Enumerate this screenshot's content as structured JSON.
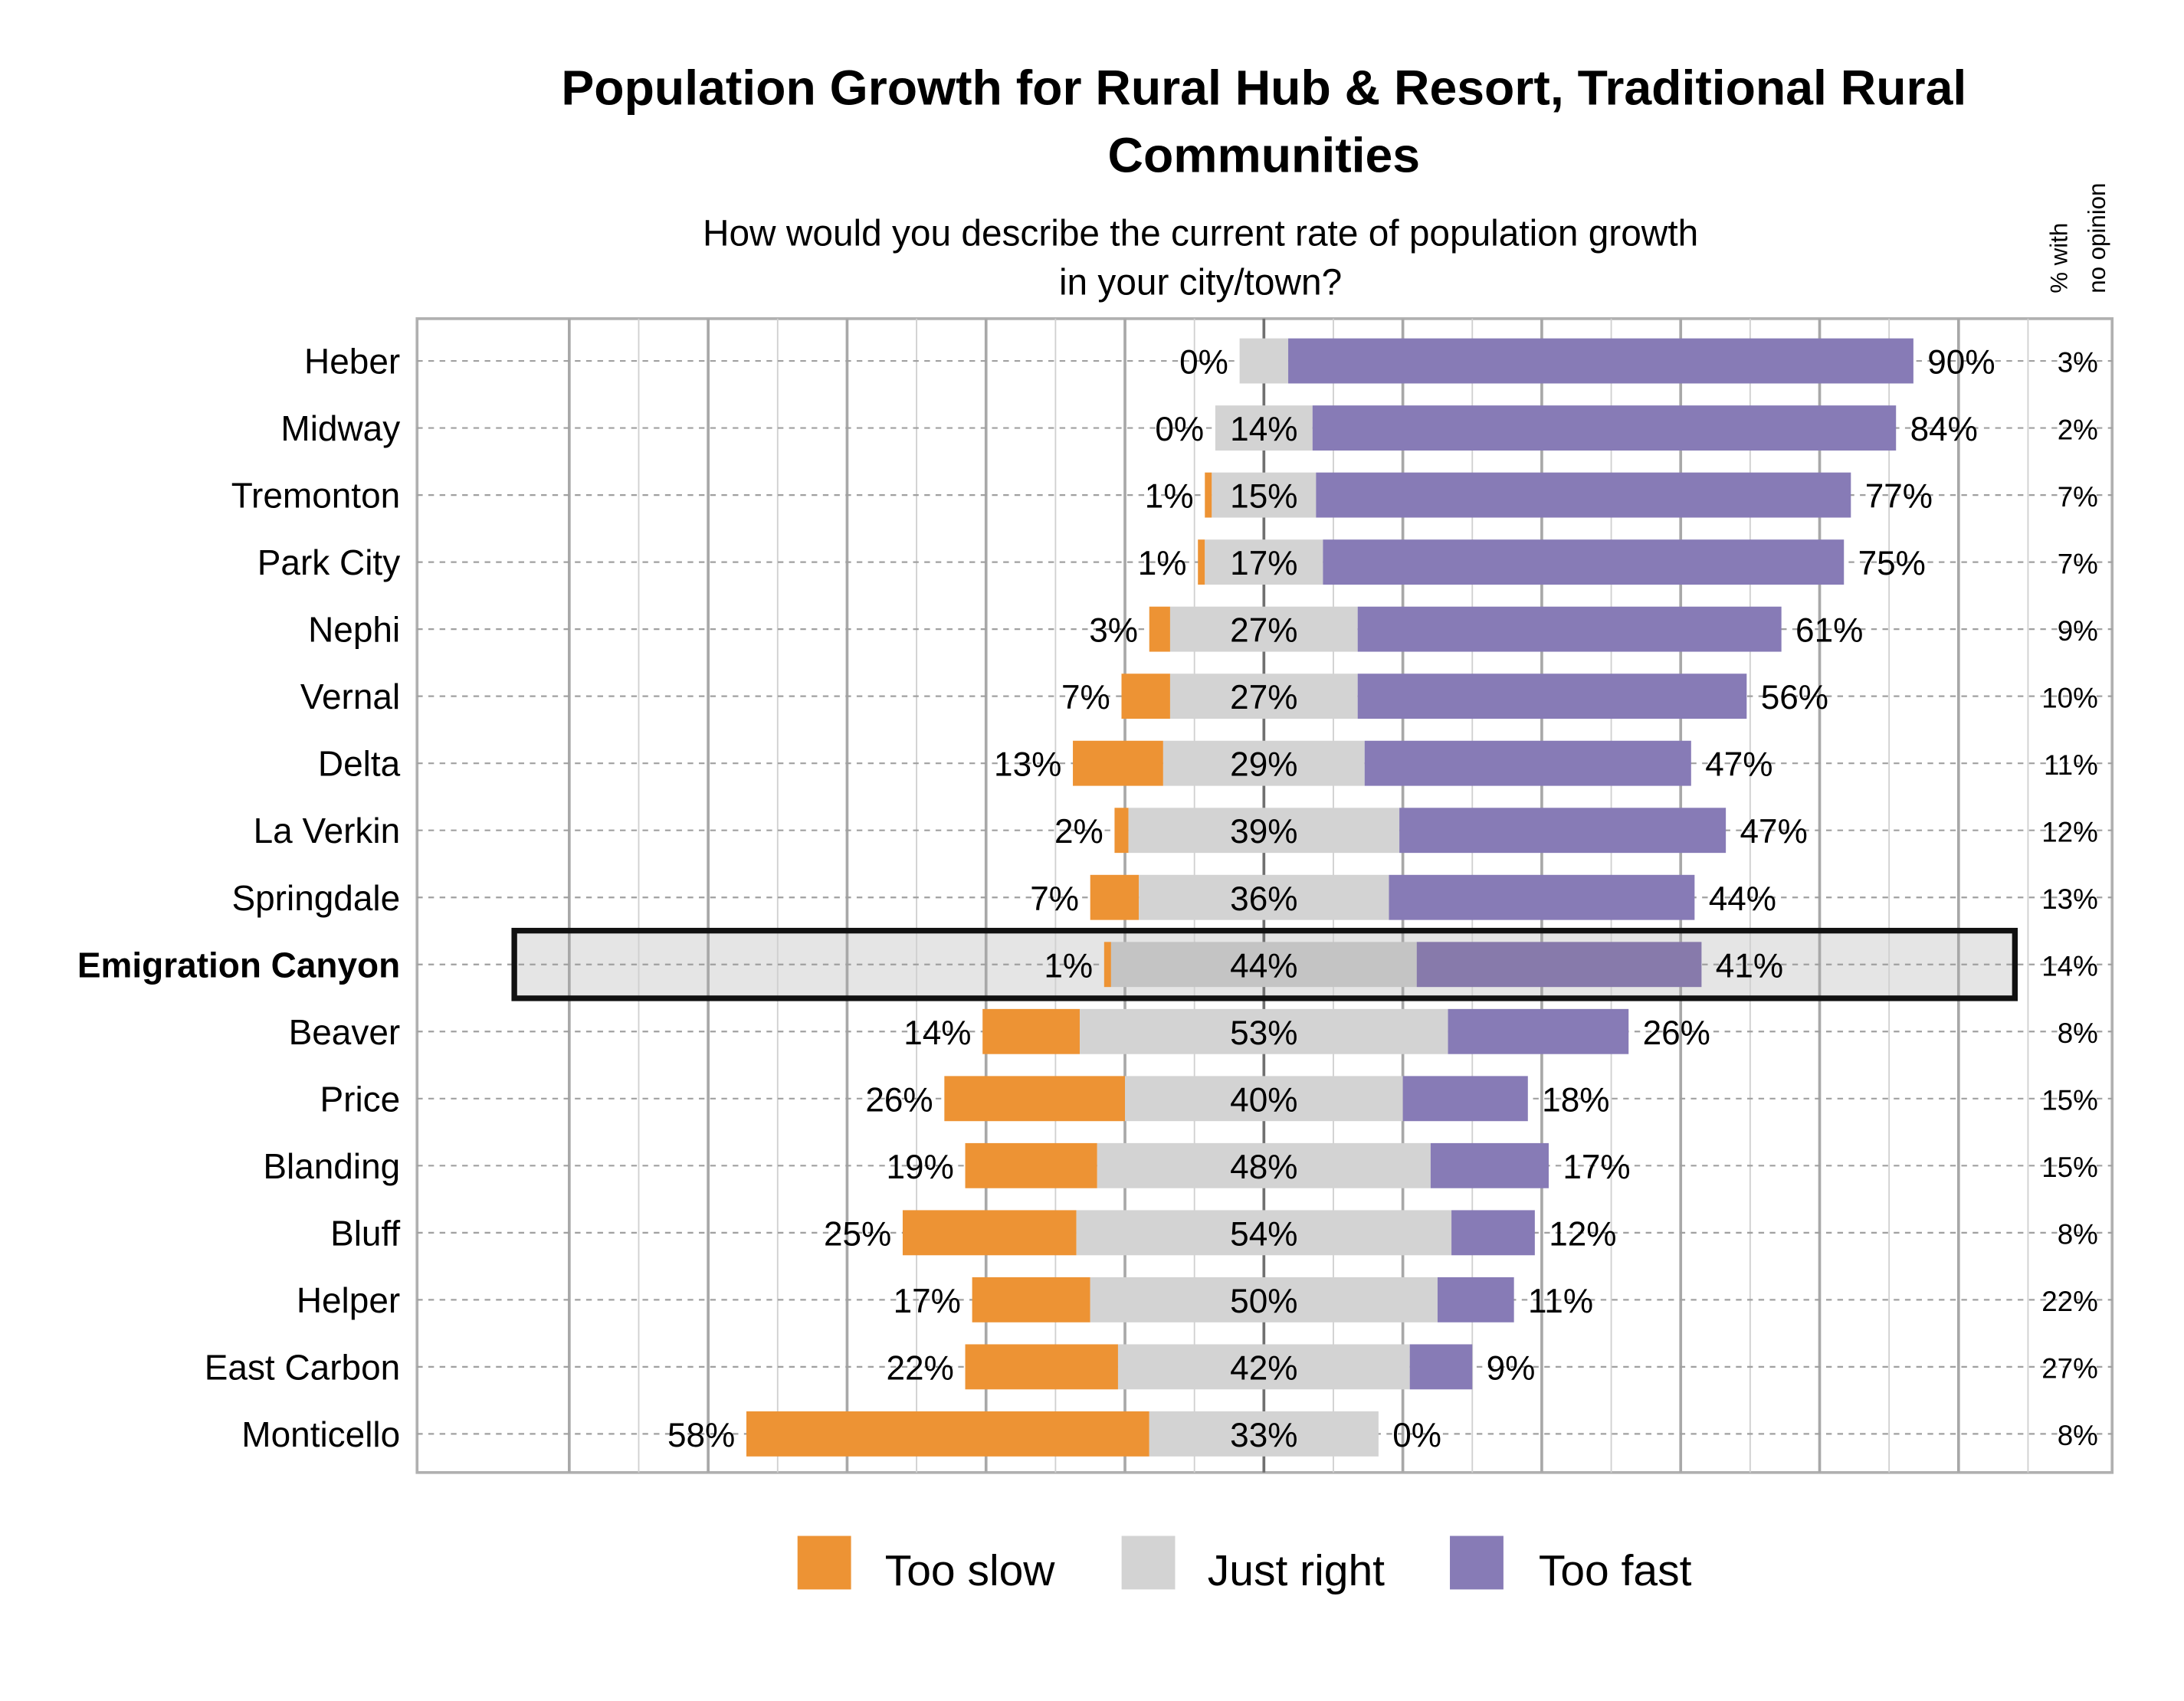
{
  "chart_data": {
    "type": "bar",
    "orientation": "horizontal-diverging-stacked",
    "title": "Population Growth for Rural Hub & Resort, Traditional Rural Communities",
    "title_lines": [
      "Population Growth for Rural Hub & Resort, Traditional Rural",
      "Communities"
    ],
    "subtitle_lines": [
      "How would you describe the current rate of population growth",
      "in your city/town?"
    ],
    "side_header_lines": [
      "% with",
      "no opinion"
    ],
    "categories": [
      "Heber",
      "Midway",
      "Tremonton",
      "Park City",
      "Nephi",
      "Vernal",
      "Delta",
      "La Verkin",
      "Springdale",
      "Emigration Canyon",
      "Beaver",
      "Price",
      "Blanding",
      "Bluff",
      "Helper",
      "East Carbon",
      "Monticello"
    ],
    "highlighted_category": "Emigration Canyon",
    "series": [
      {
        "name": "Too slow",
        "color": "#ed9334",
        "values": [
          0,
          0,
          1,
          1,
          3,
          7,
          13,
          2,
          7,
          1,
          14,
          26,
          19,
          25,
          17,
          22,
          58
        ],
        "labels": [
          "0%",
          "0%",
          "1%",
          "1%",
          "3%",
          "7%",
          "13%",
          "2%",
          "7%",
          "1%",
          "14%",
          "26%",
          "19%",
          "25%",
          "17%",
          "22%",
          "58%"
        ]
      },
      {
        "name": "Just right",
        "color": "#d3d3d3",
        "values": [
          7,
          14,
          15,
          17,
          27,
          27,
          29,
          39,
          36,
          44,
          53,
          40,
          48,
          54,
          50,
          42,
          33
        ],
        "labels": [
          "",
          "14%",
          "15%",
          "17%",
          "27%",
          "27%",
          "29%",
          "39%",
          "36%",
          "44%",
          "53%",
          "40%",
          "48%",
          "54%",
          "50%",
          "42%",
          "33%"
        ]
      },
      {
        "name": "Too fast",
        "color": "#877bb6",
        "values": [
          90,
          84,
          77,
          75,
          61,
          56,
          47,
          47,
          44,
          41,
          26,
          18,
          17,
          12,
          11,
          9,
          0
        ],
        "labels": [
          "90%",
          "84%",
          "77%",
          "75%",
          "61%",
          "56%",
          "47%",
          "47%",
          "44%",
          "41%",
          "26%",
          "18%",
          "17%",
          "12%",
          "11%",
          "9%",
          "0%"
        ]
      }
    ],
    "no_opinion": [
      "3%",
      "2%",
      "7%",
      "7%",
      "9%",
      "10%",
      "11%",
      "12%",
      "13%",
      "14%",
      "8%",
      "15%",
      "15%",
      "8%",
      "22%",
      "27%",
      "8%"
    ],
    "grid": true,
    "legend_placement": "bottom",
    "xunit": "%"
  }
}
